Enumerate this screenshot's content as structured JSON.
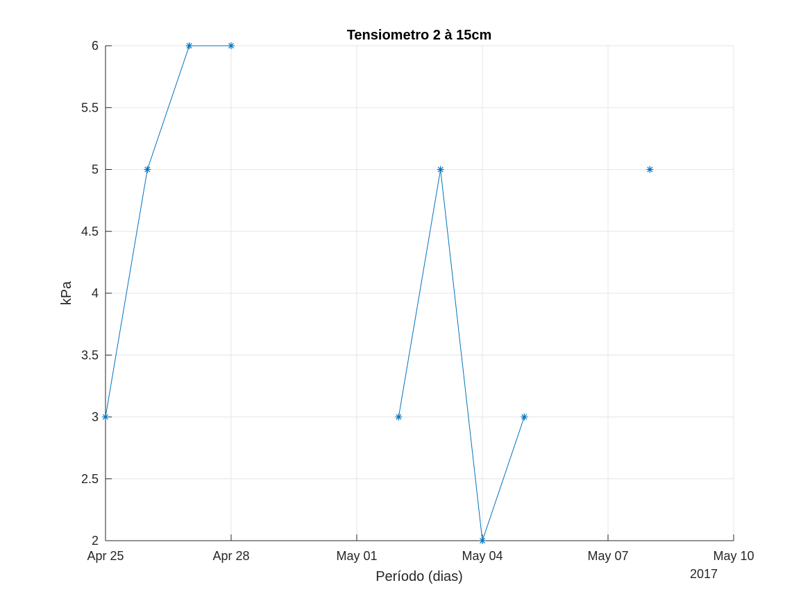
{
  "chart_data": {
    "type": "line",
    "title": "Tensiometro 2 à 15cm",
    "xlabel": "Período (dias)",
    "ylabel": "kPa",
    "x_year_label": "2017",
    "x_ticks": [
      "Apr 25",
      "Apr 28",
      "May 01",
      "May 04",
      "May 07",
      "May 10"
    ],
    "x_tick_dates": [
      "2017-04-25",
      "2017-04-28",
      "2017-05-01",
      "2017-05-04",
      "2017-05-07",
      "2017-05-10"
    ],
    "xlim": [
      "2017-04-25",
      "2017-05-10"
    ],
    "y_ticks": [
      "2",
      "2.5",
      "3",
      "3.5",
      "4",
      "4.5",
      "5",
      "5.5",
      "6"
    ],
    "ylim": [
      2,
      6
    ],
    "grid": true,
    "series": [
      {
        "color": "#0072bd",
        "marker": "asterisk",
        "points": [
          {
            "x": "2017-04-25",
            "y": 3
          },
          {
            "x": "2017-04-26",
            "y": 5
          },
          {
            "x": "2017-04-27",
            "y": 6
          },
          {
            "x": "2017-04-28",
            "y": 6
          },
          {
            "x": "2017-04-29",
            "y": null
          },
          {
            "x": "2017-04-30",
            "y": null
          },
          {
            "x": "2017-05-01",
            "y": null
          },
          {
            "x": "2017-05-02",
            "y": 3
          },
          {
            "x": "2017-05-03",
            "y": 5
          },
          {
            "x": "2017-05-04",
            "y": 2
          },
          {
            "x": "2017-05-05",
            "y": 3
          },
          {
            "x": "2017-05-06",
            "y": null
          },
          {
            "x": "2017-05-07",
            "y": null
          },
          {
            "x": "2017-05-08",
            "y": 5
          }
        ]
      }
    ]
  }
}
